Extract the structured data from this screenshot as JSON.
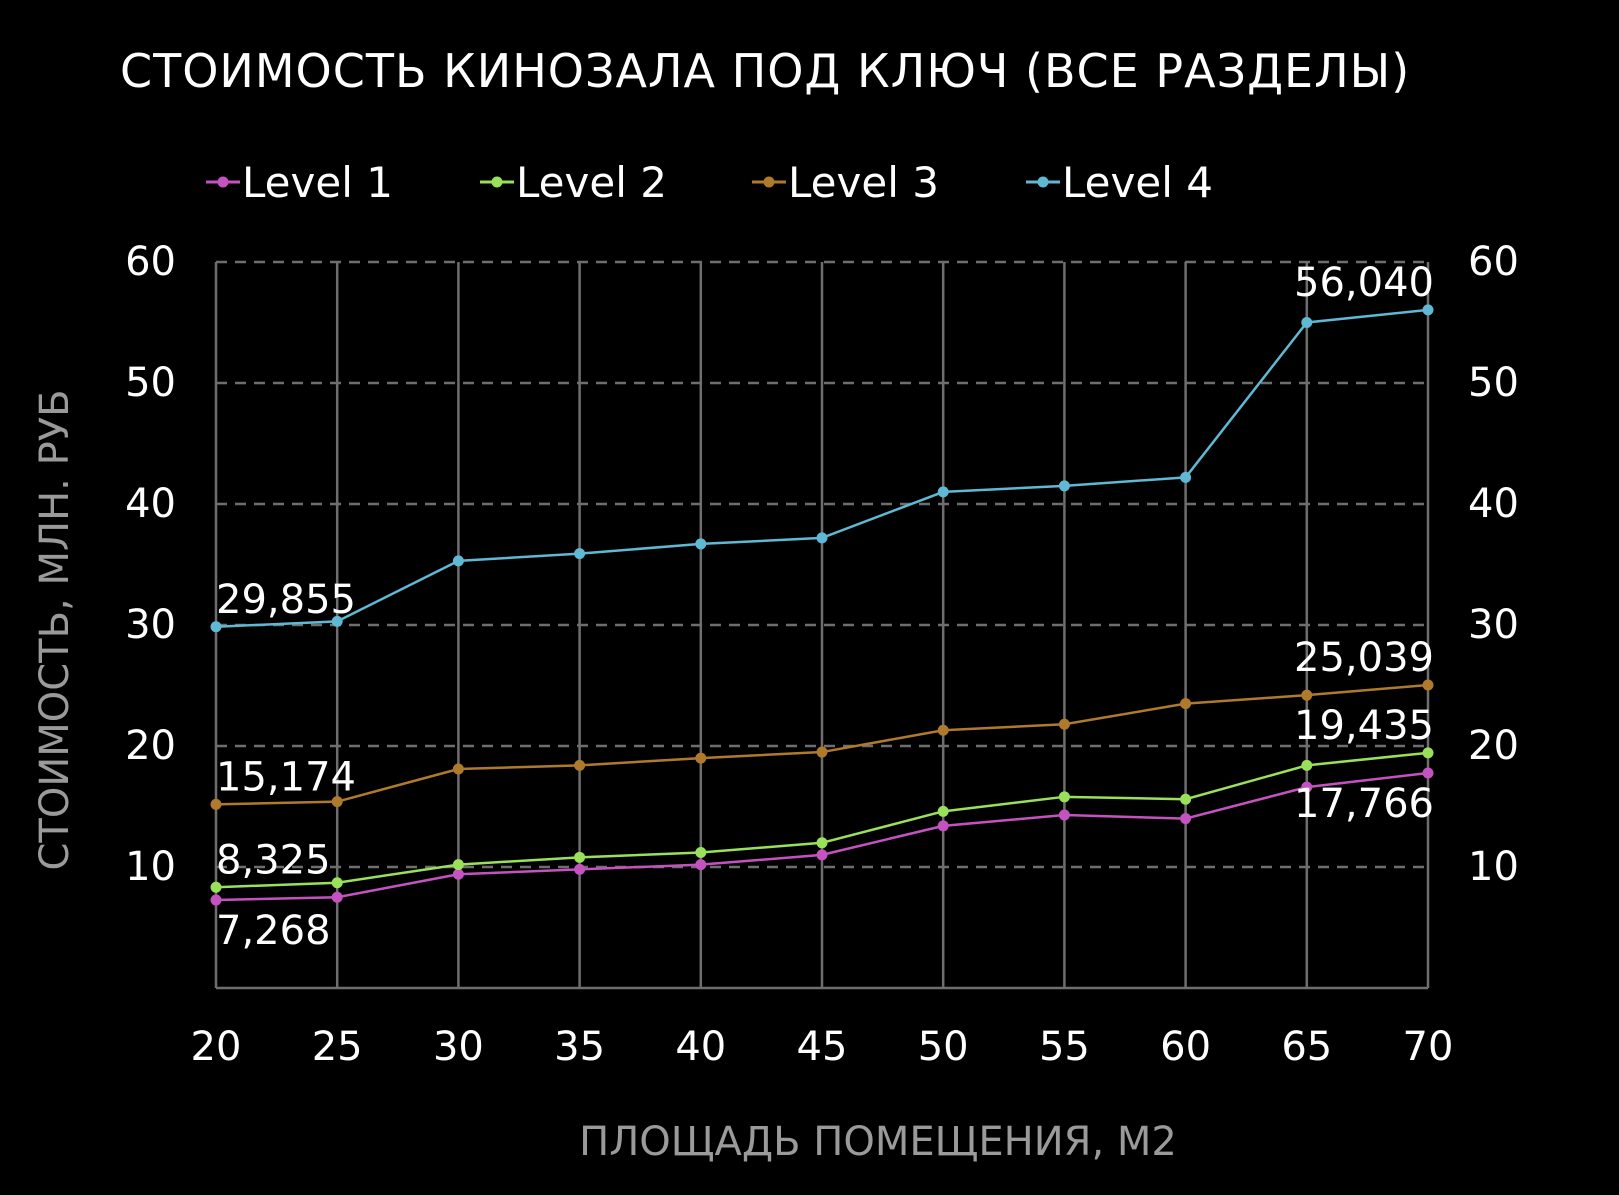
{
  "chart_data": {
    "type": "line",
    "title": "СТОИМОСТЬ КИНОЗАЛА ПОД КЛЮЧ (ВСЕ РАЗДЕЛЫ)",
    "xlabel": "ПЛОЩАДЬ ПОМЕЩЕНИЯ, М2",
    "ylabel": "СТОИМОСТЬ, МЛН. РУБ",
    "x": [
      20,
      25,
      30,
      35,
      40,
      45,
      50,
      55,
      60,
      65,
      70
    ],
    "xlim": [
      20,
      70
    ],
    "ylim": [
      0,
      60
    ],
    "y_ticks": [
      10,
      20,
      30,
      40,
      50,
      60
    ],
    "y_tick_labels_left": [
      "10",
      "20",
      "30",
      "40",
      "50",
      "60"
    ],
    "y_tick_labels_right": [
      "10",
      "20",
      "30",
      "40",
      "50",
      "60"
    ],
    "x_tick_labels": [
      "20",
      "25",
      "30",
      "35",
      "40",
      "45",
      "50",
      "55",
      "60",
      "65",
      "70"
    ],
    "grid": true,
    "legend_position": "top",
    "background": "#000000",
    "series": [
      {
        "name": "Level 1",
        "color": "#c452c0",
        "values": [
          7.268,
          7.5,
          9.4,
          9.8,
          10.2,
          11.0,
          13.4,
          14.3,
          14.0,
          16.6,
          17.766
        ],
        "data_labels": [
          {
            "index": 0,
            "text": "7,268",
            "position": "below"
          },
          {
            "index": 10,
            "text": "17,766",
            "position": "below"
          }
        ]
      },
      {
        "name": "Level 2",
        "color": "#9be05a",
        "values": [
          8.325,
          8.7,
          10.2,
          10.8,
          11.2,
          12.0,
          14.6,
          15.8,
          15.6,
          18.4,
          19.435
        ],
        "data_labels": [
          {
            "index": 0,
            "text": "8,325",
            "position": "above"
          },
          {
            "index": 10,
            "text": "19,435",
            "position": "above"
          }
        ]
      },
      {
        "name": "Level 3",
        "color": "#b07a2c",
        "values": [
          15.174,
          15.4,
          18.1,
          18.4,
          19.0,
          19.5,
          21.3,
          21.8,
          23.5,
          24.2,
          25.039
        ],
        "data_labels": [
          {
            "index": 0,
            "text": "15,174",
            "position": "above"
          },
          {
            "index": 10,
            "text": "25,039",
            "position": "above"
          }
        ]
      },
      {
        "name": "Level 4",
        "color": "#5fb8d4",
        "values": [
          29.855,
          30.3,
          35.3,
          35.9,
          36.7,
          37.2,
          41.0,
          41.5,
          42.2,
          55.0,
          56.04
        ],
        "data_labels": [
          {
            "index": 0,
            "text": "29,855",
            "position": "above"
          },
          {
            "index": 10,
            "text": "56,040",
            "position": "above"
          }
        ]
      }
    ]
  }
}
